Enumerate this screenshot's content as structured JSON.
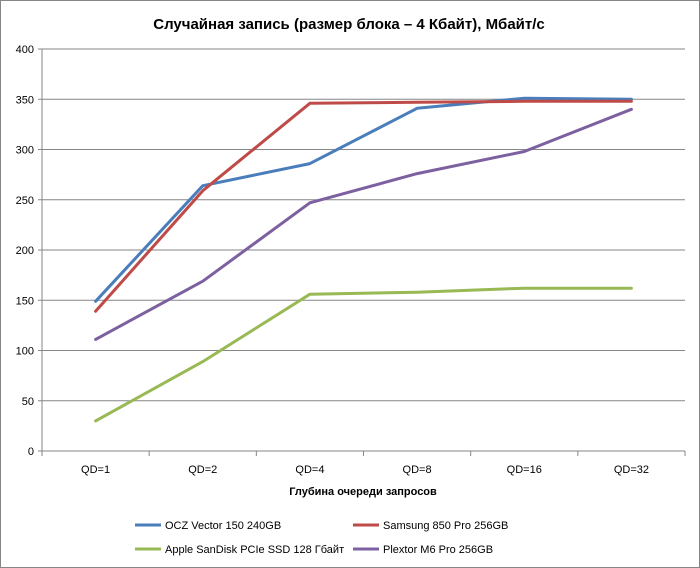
{
  "chart_data": {
    "type": "line",
    "title": "Случайная запись (размер блока – 4 Кбайт), Мбайт/с",
    "xlabel": "Глубина очереди запросов",
    "ylabel": "",
    "categories": [
      "QD=1",
      "QD=2",
      "QD=4",
      "QD=8",
      "QD=16",
      "QD=32"
    ],
    "ylim": [
      0,
      400
    ],
    "yticks": [
      0,
      50,
      100,
      150,
      200,
      250,
      300,
      350,
      400
    ],
    "grid": "horizontal",
    "legend_position": "bottom",
    "series": [
      {
        "name": "OCZ Vector 150 240GB",
        "color": "#4a7ebb",
        "values": [
          149,
          264,
          286,
          341,
          351,
          350
        ]
      },
      {
        "name": "Samsung 850 Pro 256GB",
        "color": "#be4b48",
        "values": [
          139,
          259,
          346,
          347,
          348,
          348
        ]
      },
      {
        "name": "Apple SanDisk PCIe SSD 128 Гбайт",
        "color": "#98b954",
        "values": [
          30,
          89,
          156,
          158,
          162,
          162
        ]
      },
      {
        "name": "Plextor M6 Pro 256GB",
        "color": "#7d60a0",
        "values": [
          111,
          169,
          247,
          276,
          298,
          340
        ]
      }
    ]
  }
}
